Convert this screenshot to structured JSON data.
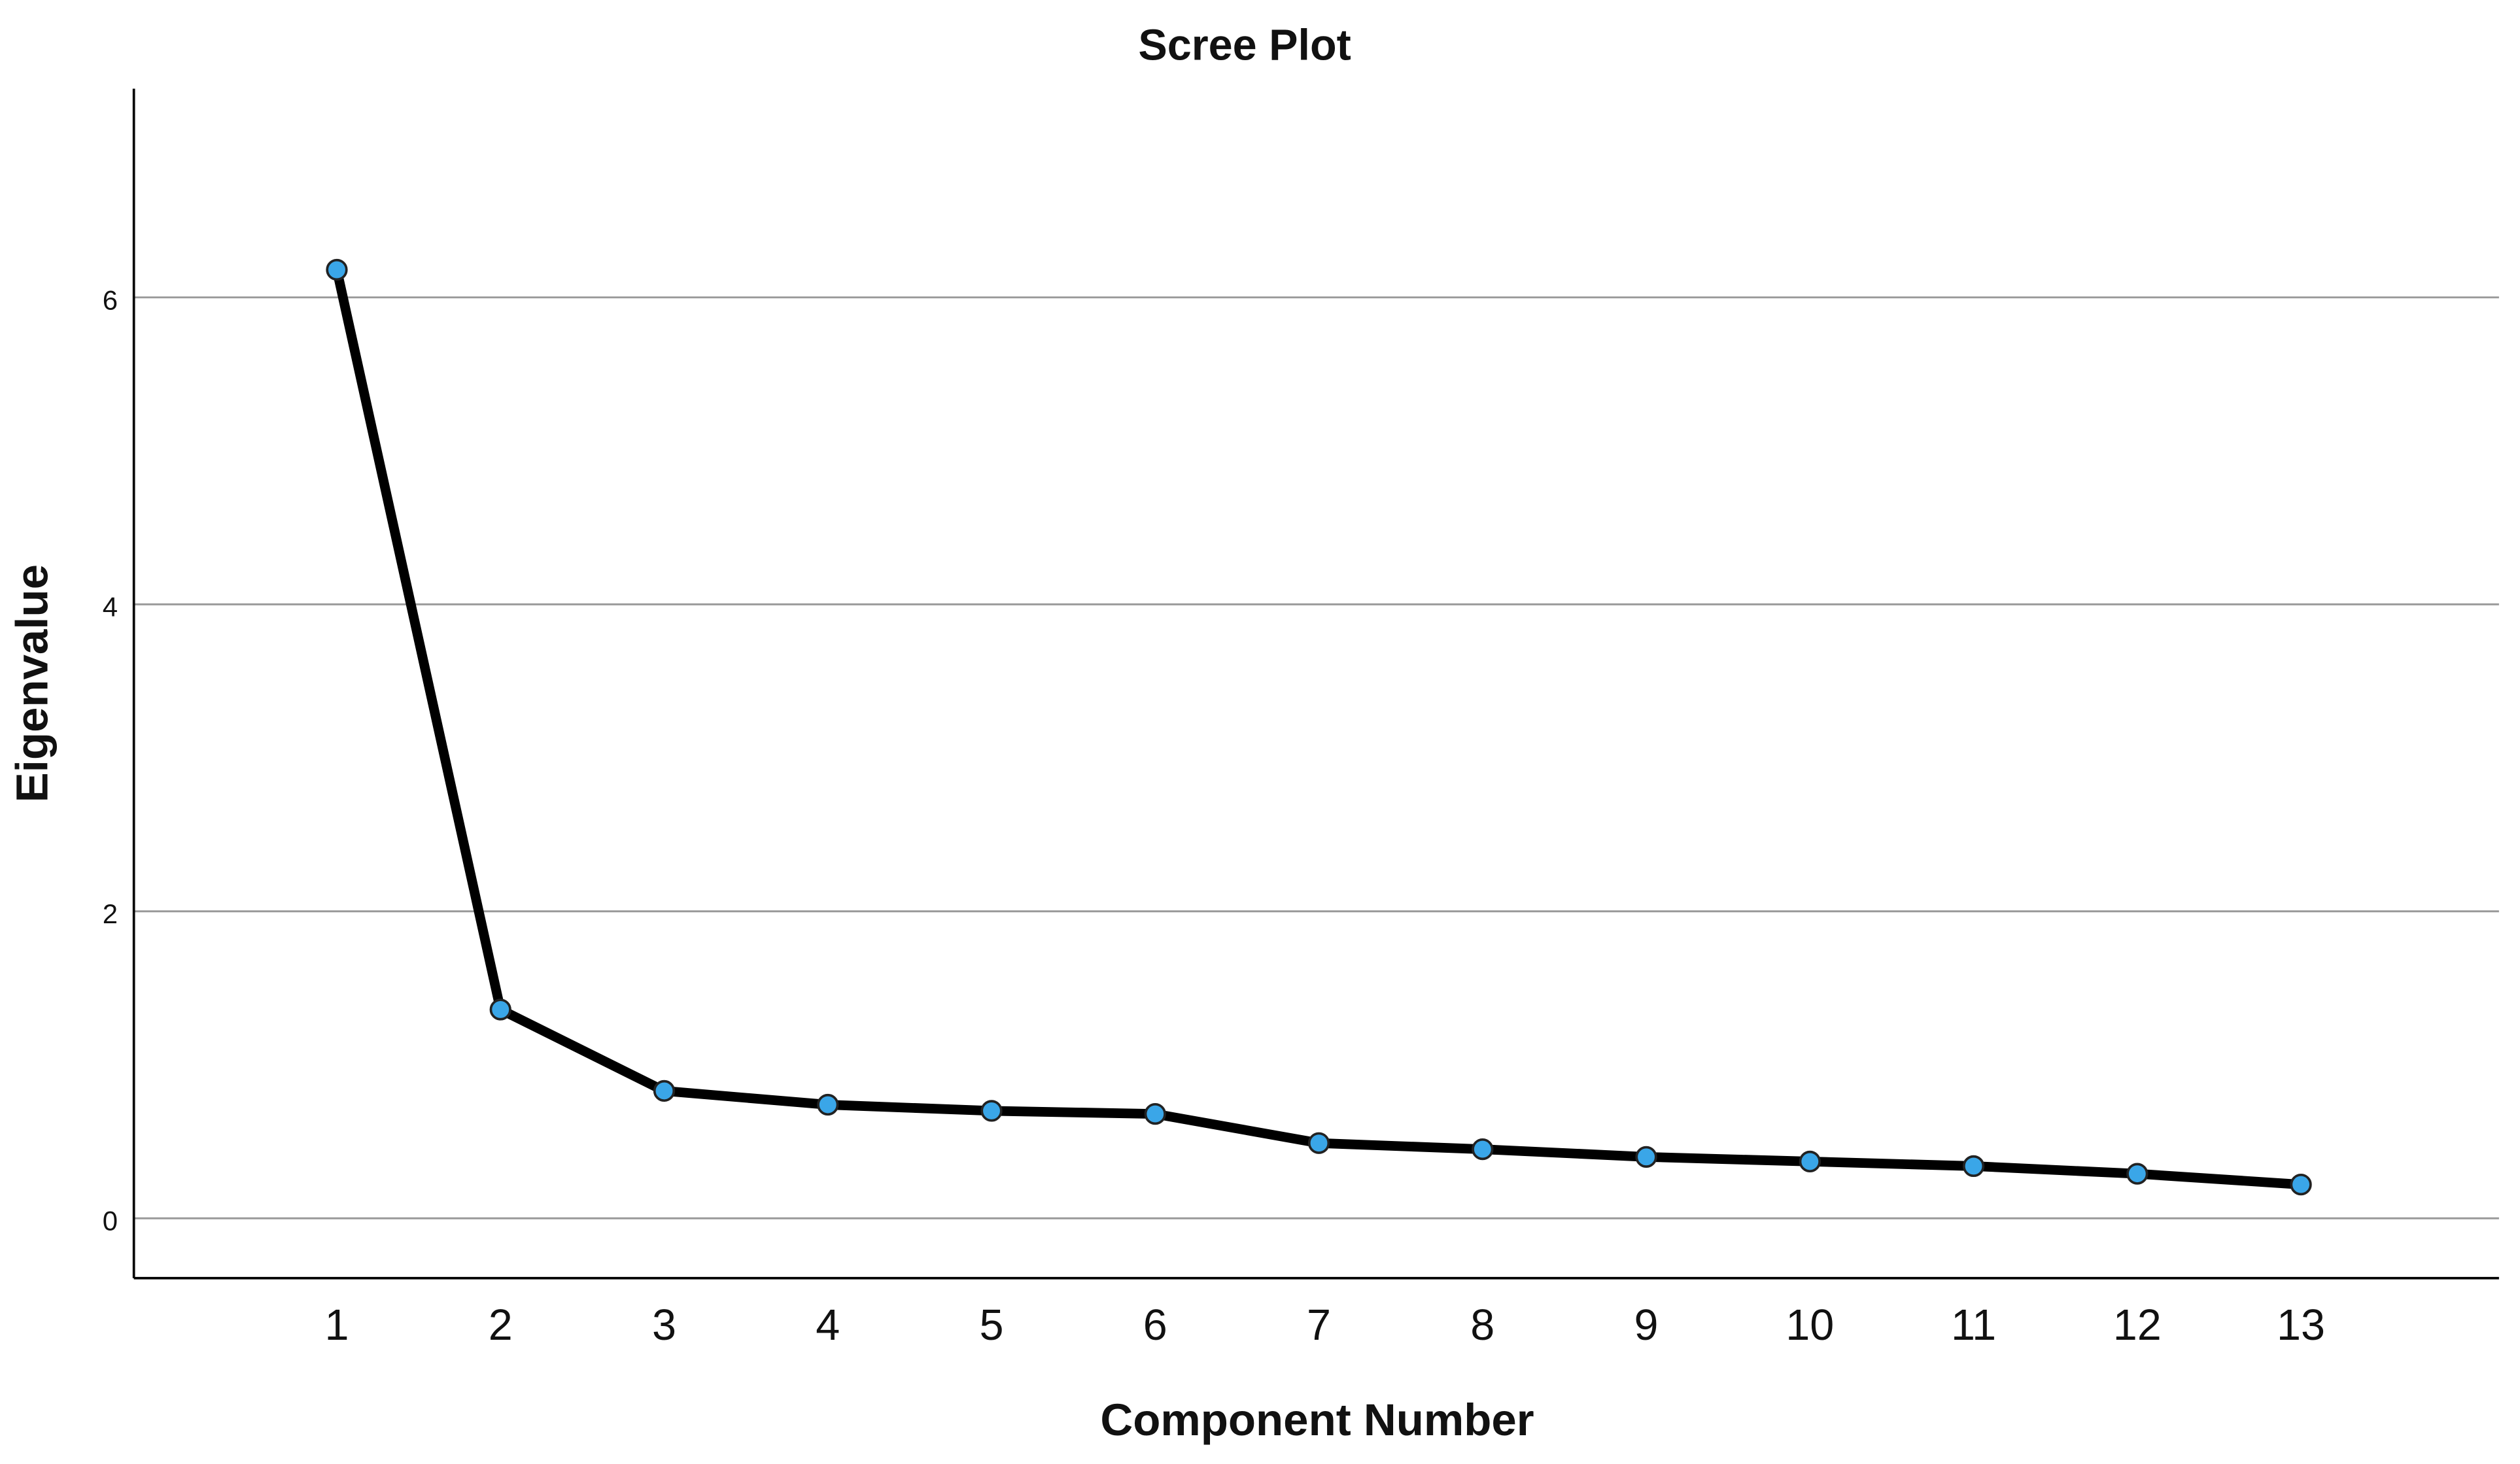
{
  "chart_data": {
    "type": "line",
    "title": "Scree Plot",
    "x_label": "Component Number",
    "y_label": "Eigenvalue",
    "x": [
      1,
      2,
      3,
      4,
      5,
      6,
      7,
      8,
      9,
      10,
      11,
      12,
      13
    ],
    "series": [
      {
        "name": "Eigenvalue",
        "color": "#000000",
        "marker_color": "#3aa6e8",
        "values": [
          6.18,
          1.36,
          0.83,
          0.74,
          0.7,
          0.68,
          0.49,
          0.45,
          0.4,
          0.37,
          0.34,
          0.29,
          0.22
        ]
      }
    ],
    "xlim": [
      -0.24,
      14.21
    ],
    "xticks": [
      1,
      2,
      3,
      4,
      5,
      6,
      7,
      8,
      9,
      10,
      11,
      12,
      13
    ],
    "ylim": [
      -0.39,
      7.36
    ],
    "yticks": [
      0,
      2,
      4,
      6
    ],
    "grid": true
  }
}
